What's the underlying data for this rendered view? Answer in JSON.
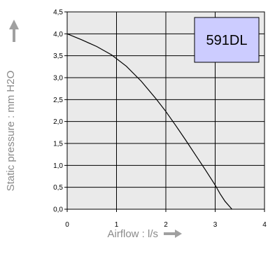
{
  "chart_data": {
    "type": "line",
    "title": "",
    "xlabel": "Airflow : l/s",
    "ylabel": "Static pressure : mm H2O",
    "annotation": "591DL",
    "xlim": [
      0,
      4
    ],
    "ylim": [
      0,
      4.5
    ],
    "grid": true,
    "legend": "none",
    "x_ticks": [
      "0",
      "1",
      "2",
      "3",
      "4"
    ],
    "y_ticks": [
      "0,0",
      "0,5",
      "1,0",
      "1,5",
      "2,0",
      "2,5",
      "3,0",
      "3,5",
      "4,0",
      "4,5"
    ],
    "series": [
      {
        "x": [
          0,
          0.3,
          0.6,
          0.9,
          1.2,
          1.5,
          1.8,
          2.0,
          2.2,
          2.4,
          2.6,
          2.8,
          3.0,
          3.1,
          3.2,
          3.34
        ],
        "y": [
          4.0,
          3.86,
          3.71,
          3.52,
          3.26,
          2.92,
          2.52,
          2.23,
          1.91,
          1.58,
          1.24,
          0.9,
          0.55,
          0.35,
          0.18,
          0.0
        ]
      }
    ],
    "colors": {
      "plot_background": "#eaeaea",
      "grid": "#000000",
      "line": "#000000",
      "annotation_fill": "#ccccff",
      "axis_title": "#8a8a8a",
      "arrow": "#a0a0a0"
    }
  }
}
